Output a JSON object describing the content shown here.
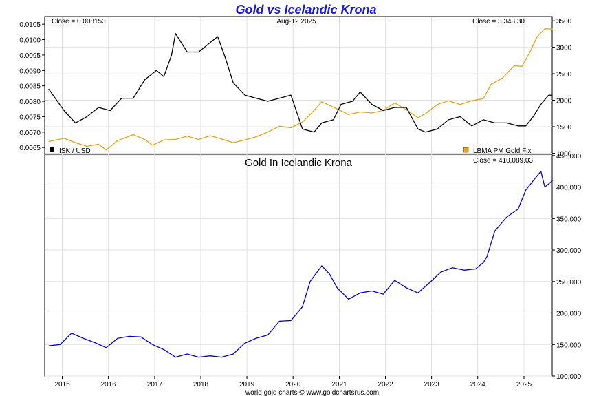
{
  "chart_data": [
    {
      "type": "line",
      "title": "Gold vs Icelandic Krona",
      "date_label": "Aug-12  2025",
      "close_left": "Close = 0.008153",
      "close_right": "Close = 3,343.30",
      "left_axis": {
        "ticks": [
          "0.0065",
          "0.0070",
          "0.0075",
          "0.0080",
          "0.0085",
          "0.0090",
          "0.0095",
          "0.0100",
          "0.0105"
        ],
        "ylim": [
          0.00628,
          0.01075
        ]
      },
      "right_axis": {
        "ticks": [
          "1000",
          "1500",
          "2000",
          "2500",
          "3000",
          "3500"
        ],
        "ylim": [
          980,
          3580
        ]
      },
      "legend": [
        {
          "name": "ISK / USD",
          "color": "#000000",
          "position": "bottom-left"
        },
        {
          "name": "LBMA PM Gold Fix",
          "color": "#e8a317",
          "position": "bottom-right"
        }
      ],
      "series": [
        {
          "name": "ISK / USD",
          "color": "#000000",
          "axis": "left",
          "x": [
            "2014-09",
            "2015-01",
            "2015-04",
            "2015-07",
            "2015-10",
            "2016-01",
            "2016-04",
            "2016-07",
            "2016-10",
            "2017-01",
            "2017-03",
            "2017-05",
            "2017-06",
            "2017-09",
            "2017-12",
            "2018-03",
            "2018-05",
            "2018-07",
            "2018-09",
            "2018-12",
            "2019-03",
            "2019-06",
            "2019-09",
            "2019-12",
            "2020-03",
            "2020-06",
            "2020-08",
            "2020-11",
            "2021-01",
            "2021-04",
            "2021-06",
            "2021-09",
            "2021-12",
            "2022-03",
            "2022-06",
            "2022-09",
            "2022-11",
            "2023-02",
            "2023-05",
            "2023-08",
            "2023-11",
            "2024-02",
            "2024-05",
            "2024-08",
            "2024-11",
            "2025-01",
            "2025-03",
            "2025-05",
            "2025-07",
            "2025-08"
          ],
          "y": [
            0.0084,
            0.0077,
            0.0073,
            0.0075,
            0.0078,
            0.0077,
            0.0081,
            0.0081,
            0.0087,
            0.009,
            0.0088,
            0.0095,
            0.0102,
            0.0096,
            0.0096,
            0.0099,
            0.0101,
            0.0094,
            0.0086,
            0.0082,
            0.0081,
            0.008,
            0.0081,
            0.0082,
            0.0071,
            0.007,
            0.0073,
            0.0074,
            0.0079,
            0.008,
            0.0083,
            0.0079,
            0.0077,
            0.0078,
            0.0078,
            0.0071,
            0.007,
            0.0071,
            0.0074,
            0.0075,
            0.0072,
            0.0074,
            0.0073,
            0.0073,
            0.0072,
            0.0072,
            0.0075,
            0.0079,
            0.0082,
            0.0082
          ]
        },
        {
          "name": "LBMA PM Gold Fix",
          "color": "#e8a317",
          "axis": "right",
          "x": [
            "2014-09",
            "2015-01",
            "2015-04",
            "2015-07",
            "2015-10",
            "2015-12",
            "2016-03",
            "2016-07",
            "2016-10",
            "2016-12",
            "2017-03",
            "2017-06",
            "2017-09",
            "2017-12",
            "2018-03",
            "2018-06",
            "2018-09",
            "2018-12",
            "2019-03",
            "2019-06",
            "2019-09",
            "2019-12",
            "2020-03",
            "2020-05",
            "2020-08",
            "2020-11",
            "2021-03",
            "2021-06",
            "2021-09",
            "2021-12",
            "2022-03",
            "2022-06",
            "2022-09",
            "2022-11",
            "2023-02",
            "2023-05",
            "2023-08",
            "2023-11",
            "2024-02",
            "2024-04",
            "2024-07",
            "2024-10",
            "2024-12",
            "2025-02",
            "2025-04",
            "2025-06",
            "2025-08"
          ],
          "y": [
            1220,
            1280,
            1200,
            1130,
            1170,
            1060,
            1240,
            1350,
            1260,
            1150,
            1250,
            1260,
            1320,
            1260,
            1330,
            1270,
            1200,
            1250,
            1310,
            1400,
            1510,
            1480,
            1590,
            1730,
            1970,
            1870,
            1730,
            1780,
            1760,
            1810,
            1950,
            1820,
            1670,
            1750,
            1920,
            1990,
            1920,
            1990,
            2030,
            2300,
            2420,
            2650,
            2640,
            2900,
            3200,
            3350,
            3343
          ]
        }
      ]
    },
    {
      "type": "line",
      "title": "Gold In Icelandic Krona",
      "close_label": "Close = 410,089.03",
      "y_axis": {
        "ticks": [
          "100,000",
          "150,000",
          "200,000",
          "250,000",
          "300,000",
          "350,000",
          "400,000",
          "450,000"
        ],
        "ylim": [
          100000,
          452000
        ]
      },
      "x_axis": {
        "ticks": [
          "2015",
          "2016",
          "2017",
          "2018",
          "2019",
          "2020",
          "2021",
          "2022",
          "2023",
          "2024",
          "2025"
        ],
        "range": [
          "2014-08-15",
          "2025-08-12"
        ]
      },
      "footer": "world gold charts © www.goldchartsrus.com",
      "series": [
        {
          "name": "Gold In Icelandic Krona",
          "color": "#0000cc",
          "x": [
            "2014-09",
            "2014-12",
            "2015-03",
            "2015-06",
            "2015-09",
            "2015-12",
            "2016-03",
            "2016-06",
            "2016-09",
            "2016-12",
            "2017-03",
            "2017-06",
            "2017-09",
            "2017-12",
            "2018-03",
            "2018-06",
            "2018-09",
            "2018-12",
            "2019-03",
            "2019-06",
            "2019-09",
            "2019-12",
            "2020-03",
            "2020-05",
            "2020-08",
            "2020-10",
            "2020-12",
            "2021-03",
            "2021-06",
            "2021-09",
            "2021-12",
            "2022-03",
            "2022-06",
            "2022-09",
            "2022-12",
            "2023-03",
            "2023-06",
            "2023-09",
            "2023-12",
            "2024-02",
            "2024-03",
            "2024-05",
            "2024-08",
            "2024-11",
            "2025-01",
            "2025-03",
            "2025-05",
            "2025-06",
            "2025-08"
          ],
          "y": [
            148000,
            150000,
            168000,
            160000,
            153000,
            145000,
            160000,
            163000,
            162000,
            150000,
            142000,
            130000,
            135000,
            130000,
            132000,
            130000,
            135000,
            152000,
            160000,
            165000,
            187000,
            188000,
            210000,
            250000,
            275000,
            262000,
            240000,
            222000,
            232000,
            235000,
            230000,
            252000,
            240000,
            232000,
            248000,
            265000,
            272000,
            268000,
            270000,
            280000,
            290000,
            330000,
            352000,
            365000,
            395000,
            410000,
            425000,
            400000,
            410089
          ]
        }
      ]
    }
  ]
}
